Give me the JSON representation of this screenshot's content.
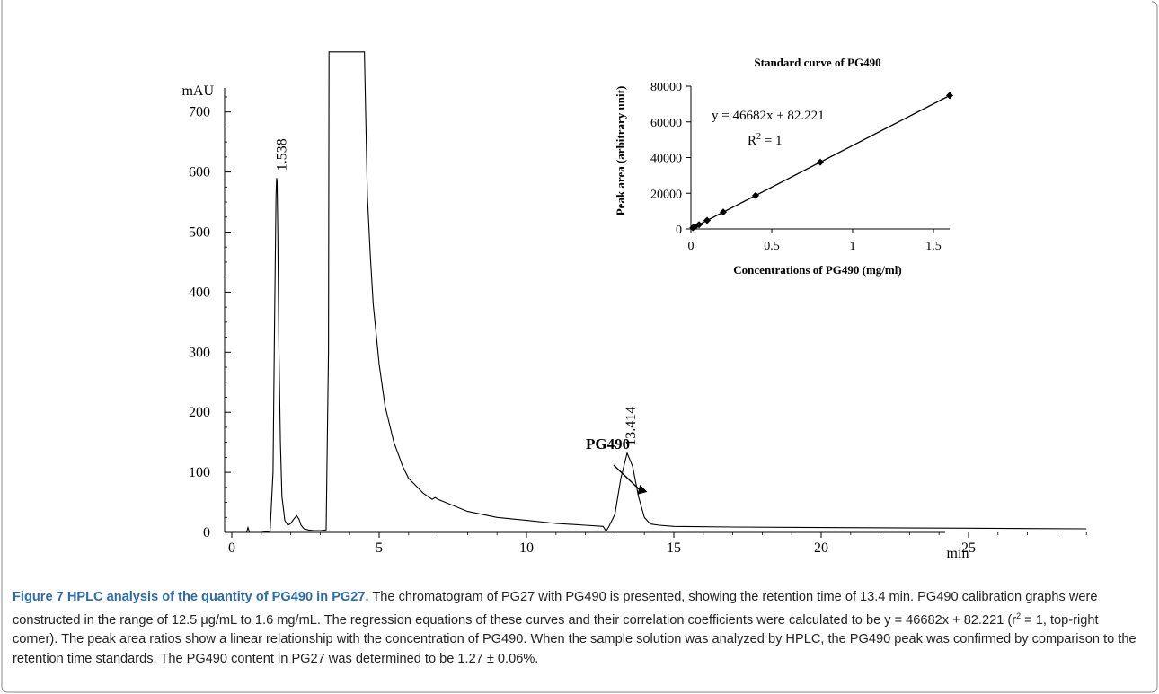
{
  "chart_data": [
    {
      "type": "line",
      "title": "",
      "xlabel": "min",
      "ylabel": "mAU",
      "xlim": [
        0,
        29
      ],
      "ylim": [
        0,
        800
      ],
      "x_ticks": [
        0,
        5,
        10,
        15,
        20,
        25
      ],
      "x_tick_labels": [
        "0",
        "5",
        "10",
        "15",
        "20",
        "25"
      ],
      "y_ticks": [
        0,
        100,
        200,
        300,
        400,
        500,
        600,
        700
      ],
      "y_tick_labels": [
        "0",
        "100",
        "200",
        "300",
        "400",
        "500",
        "600",
        "700"
      ],
      "grid": false,
      "series": [
        {
          "name": "",
          "x": [
            0,
            0.5,
            0.55,
            0.6,
            1.0,
            1.3,
            1.4,
            1.45,
            1.5,
            1.52,
            1.538,
            1.56,
            1.6,
            1.65,
            1.7,
            1.8,
            1.9,
            2.0,
            2.1,
            2.2,
            2.28,
            2.35,
            2.45,
            2.6,
            2.8,
            3.0,
            3.2,
            3.28,
            3.3,
            3.32,
            3.4,
            3.5,
            4.0,
            4.3,
            4.5,
            4.6,
            4.7,
            4.8,
            5.0,
            5.2,
            5.5,
            5.8,
            6.0,
            6.5,
            6.8,
            6.9,
            7.0,
            7.5,
            8.0,
            9.0,
            10.0,
            11.0,
            12.0,
            12.6,
            12.7,
            12.8,
            13.0,
            13.2,
            13.414,
            13.6,
            13.8,
            14.0,
            14.2,
            14.5,
            15.0,
            17.0,
            20.0,
            25.0,
            29.0
          ],
          "values": [
            0,
            0,
            8,
            0,
            0,
            2,
            100,
            350,
            560,
            590,
            585,
            500,
            300,
            150,
            60,
            20,
            12,
            15,
            22,
            28,
            22,
            12,
            6,
            4,
            3,
            3,
            4,
            300,
            800,
            800,
            800,
            800,
            800,
            800,
            800,
            560,
            460,
            380,
            280,
            210,
            150,
            110,
            90,
            65,
            55,
            58,
            55,
            45,
            35,
            25,
            20,
            15,
            12,
            10,
            2,
            10,
            30,
            90,
            132,
            110,
            60,
            25,
            14,
            12,
            10,
            9,
            8,
            7,
            6
          ]
        }
      ],
      "annotations": [
        {
          "x": 1.538,
          "text": "1.538"
        },
        {
          "x": 13.414,
          "text": "13.414"
        },
        {
          "text": "PG490",
          "arrow_target_x": 13.7,
          "arrow_target_y": 60
        }
      ]
    },
    {
      "type": "scatter",
      "title": "Standard curve of PG490",
      "xlabel": "Concentrations of PG490 (mg/ml)",
      "ylabel": "Peak area (arbitrary unit)",
      "xlim": [
        0,
        1.6
      ],
      "ylim": [
        0,
        80000
      ],
      "x_ticks": [
        0,
        0.5,
        1,
        1.5
      ],
      "x_tick_labels": [
        "0",
        "0.5",
        "1",
        "1.5"
      ],
      "y_ticks": [
        0,
        20000,
        40000,
        60000,
        80000
      ],
      "y_tick_labels": [
        "0",
        "20000",
        "40000",
        "60000",
        "80000"
      ],
      "grid": false,
      "series": [
        {
          "name": "",
          "x": [
            0.0125,
            0.025,
            0.05,
            0.1,
            0.2,
            0.4,
            0.8,
            1.6
          ],
          "values": [
            666,
            1249,
            2416,
            4750,
            9419,
            18755,
            37428,
            74773
          ]
        }
      ],
      "trendline": {
        "slope": 46682,
        "intercept": 82.221
      },
      "equation_text": "y = 46682x + 82.221",
      "r2_prefix": "R",
      "r2_exp": "2",
      "r2_suffix": " = 1"
    }
  ],
  "caption": {
    "label": "Figure 7",
    "title": "HPLC analysis of the quantity of PG490 in PG27.",
    "body_1": "The chromatogram of PG27 with PG490 is presented, showing the retention time of 13.4 min. PG490 calibration graphs were constructed in the range of 12.5 μg/mL to 1.6 mg/mL. The regression equations of these curves and their correlation coefficients were calculated to be y = 46682x + 82.221 (r",
    "body_exp": "2",
    "body_2": " = 1, top-right corner). The peak area ratios show a linear relationship with the concentration of PG490. When the sample solution was analyzed by HPLC, the PG490 peak was confirmed by comparison to the retention time standards. The PG490 content in PG27 was determined to be 1.27 ± 0.06%."
  }
}
